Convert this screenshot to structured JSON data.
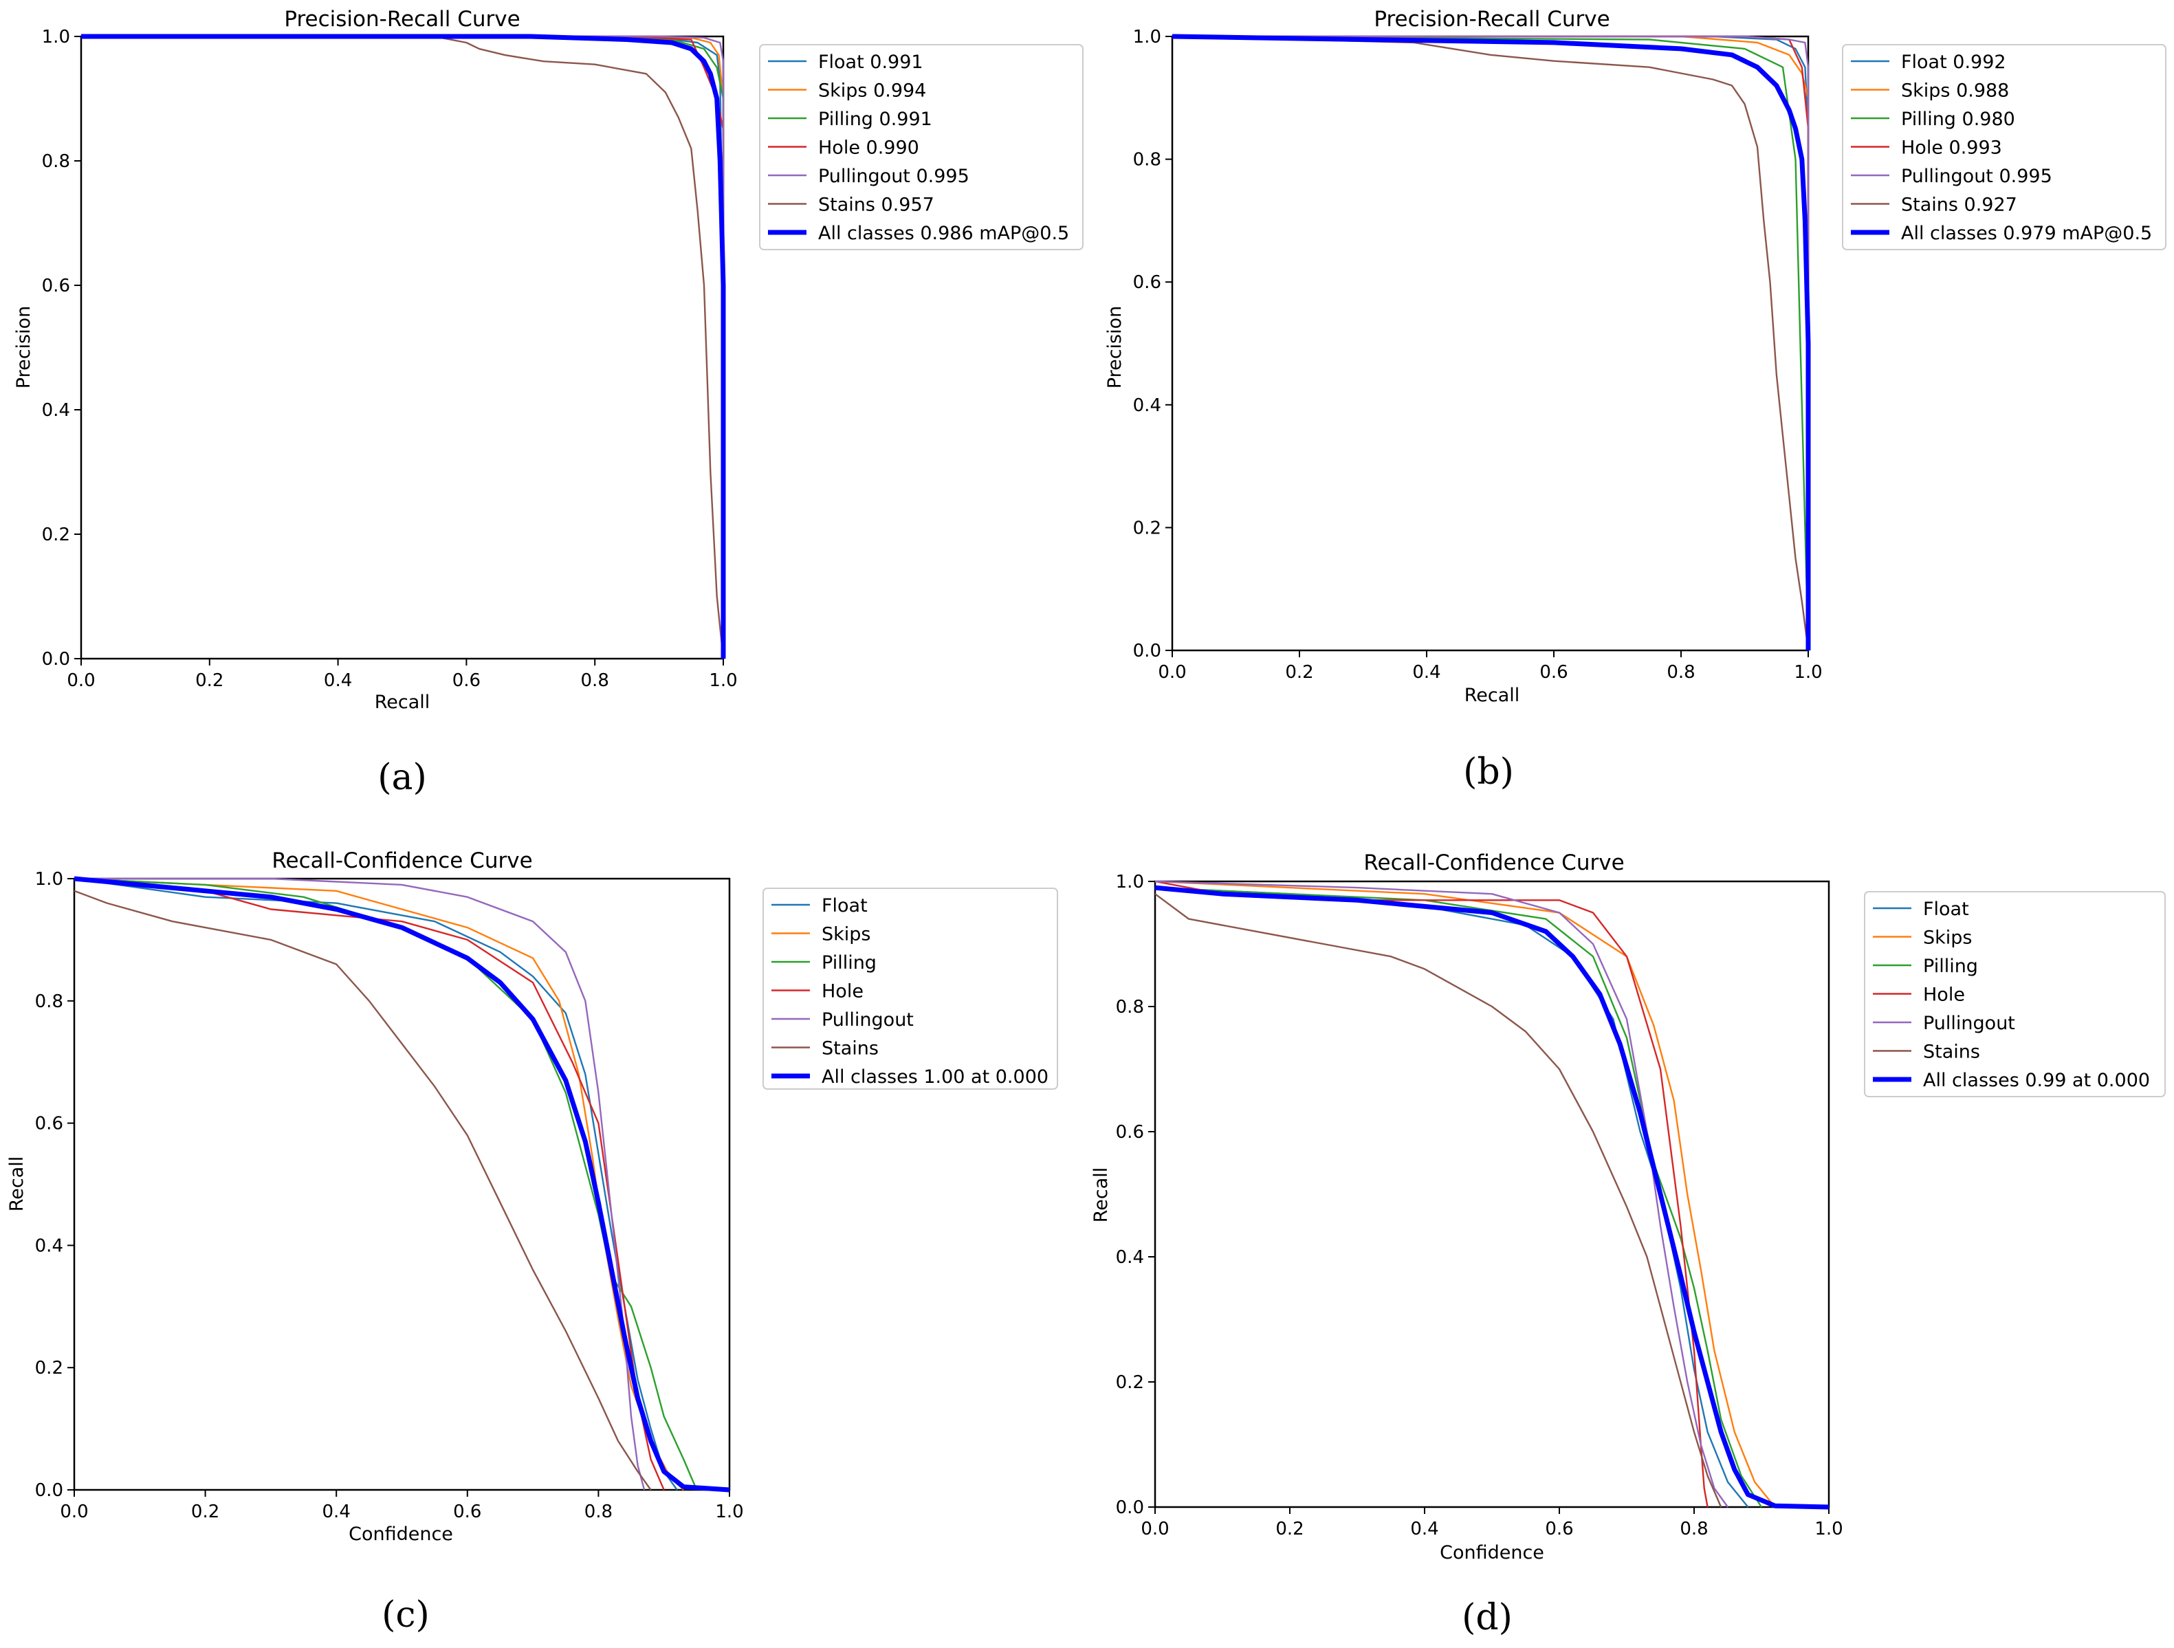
{
  "figure": {
    "captions": [
      "(a)",
      "(b)",
      "(c)",
      "(d)"
    ]
  },
  "chart_data": [
    {
      "type": "line",
      "title": "Precision-Recall Curve",
      "xlabel": "Recall",
      "ylabel": "Precision",
      "xlim": [
        0,
        1
      ],
      "ylim": [
        0,
        1
      ],
      "xticks": [
        "0.0",
        "0.2",
        "0.4",
        "0.6",
        "0.8",
        "1.0"
      ],
      "yticks": [
        "0.0",
        "0.2",
        "0.4",
        "0.6",
        "0.8",
        "1.0"
      ],
      "legend_position": "outside-right",
      "series": [
        {
          "name": "Float 0.991",
          "color": "#1f77b4",
          "x": [
            0,
            0.8,
            0.9,
            0.96,
            0.99,
            0.995,
            1.0,
            1.0
          ],
          "y": [
            1,
            1,
            0.998,
            0.99,
            0.97,
            0.93,
            0.6,
            0
          ]
        },
        {
          "name": "Skips 0.994",
          "color": "#ff7f0e",
          "x": [
            0,
            0.85,
            0.95,
            0.98,
            0.993,
            1.0,
            1.0
          ],
          "y": [
            1,
            1,
            0.998,
            0.99,
            0.97,
            0.9,
            0
          ]
        },
        {
          "name": "Pilling 0.991",
          "color": "#2ca02c",
          "x": [
            0,
            0.8,
            0.92,
            0.97,
            0.99,
            1.0,
            1.0
          ],
          "y": [
            1,
            1,
            0.995,
            0.98,
            0.95,
            0.9,
            0
          ]
        },
        {
          "name": "Hole 0.990",
          "color": "#d62728",
          "x": [
            0,
            0.85,
            0.95,
            0.97,
            0.99,
            1.0,
            1.0
          ],
          "y": [
            1,
            1,
            0.995,
            0.95,
            0.9,
            0.85,
            0
          ]
        },
        {
          "name": "Pullingout 0.995",
          "color": "#9467bd",
          "x": [
            0,
            0.9,
            0.97,
            0.995,
            1.0,
            1.0
          ],
          "y": [
            1,
            1,
            0.998,
            0.99,
            0.96,
            0
          ]
        },
        {
          "name": "Stains 0.957",
          "color": "#8c564b",
          "x": [
            0,
            0.55,
            0.6,
            0.62,
            0.66,
            0.72,
            0.8,
            0.88,
            0.91,
            0.93,
            0.95,
            0.96,
            0.97,
            0.975,
            0.98,
            0.985,
            0.99,
            0.995,
            1.0
          ],
          "y": [
            1,
            1,
            0.99,
            0.98,
            0.97,
            0.96,
            0.955,
            0.94,
            0.91,
            0.87,
            0.82,
            0.72,
            0.6,
            0.45,
            0.3,
            0.2,
            0.1,
            0.05,
            0
          ]
        },
        {
          "name": "All classes 0.986 mAP@0.5",
          "color": "#0000ff",
          "x": [
            0,
            0.7,
            0.85,
            0.92,
            0.95,
            0.97,
            0.98,
            0.99,
            0.995,
            1.0,
            1.0,
            1.0
          ],
          "y": [
            1,
            1,
            0.995,
            0.99,
            0.98,
            0.96,
            0.94,
            0.9,
            0.8,
            0.6,
            0.3,
            0
          ]
        }
      ]
    },
    {
      "type": "line",
      "title": "Precision-Recall Curve",
      "xlabel": "Recall",
      "ylabel": "Precision",
      "xlim": [
        0,
        1
      ],
      "ylim": [
        0,
        1
      ],
      "xticks": [
        "0.0",
        "0.2",
        "0.4",
        "0.6",
        "0.8",
        "1.0"
      ],
      "yticks": [
        "0.0",
        "0.2",
        "0.4",
        "0.6",
        "0.8",
        "1.0"
      ],
      "legend_position": "outside-right",
      "series": [
        {
          "name": "Float 0.992",
          "color": "#1f77b4",
          "x": [
            0,
            0.85,
            0.95,
            0.98,
            0.995,
            1.0,
            1.0
          ],
          "y": [
            1,
            1,
            0.995,
            0.98,
            0.95,
            0.85,
            0
          ]
        },
        {
          "name": "Skips 0.988",
          "color": "#ff7f0e",
          "x": [
            0,
            0.8,
            0.92,
            0.97,
            0.99,
            1.0,
            1.0
          ],
          "y": [
            1,
            1,
            0.99,
            0.97,
            0.94,
            0.9,
            0
          ]
        },
        {
          "name": "Pilling 0.980",
          "color": "#2ca02c",
          "x": [
            0,
            0.75,
            0.9,
            0.96,
            0.98,
            0.99,
            1.0
          ],
          "y": [
            1,
            0.995,
            0.98,
            0.95,
            0.8,
            0.4,
            0
          ]
        },
        {
          "name": "Hole 0.993",
          "color": "#d62728",
          "x": [
            0,
            0.9,
            0.97,
            0.99,
            0.995,
            1.0,
            1.0
          ],
          "y": [
            1,
            1,
            0.995,
            0.95,
            0.9,
            0.85,
            0
          ]
        },
        {
          "name": "Pullingout 0.995",
          "color": "#9467bd",
          "x": [
            0,
            0.9,
            0.97,
            0.995,
            1.0,
            1.0
          ],
          "y": [
            1,
            1,
            0.995,
            0.99,
            0.95,
            0
          ]
        },
        {
          "name": "Stains 0.927",
          "color": "#8c564b",
          "x": [
            0,
            0.38,
            0.5,
            0.6,
            0.75,
            0.85,
            0.88,
            0.9,
            0.92,
            0.93,
            0.94,
            0.95,
            0.96,
            0.97,
            0.98,
            0.99,
            1.0
          ],
          "y": [
            1,
            0.99,
            0.97,
            0.96,
            0.95,
            0.93,
            0.92,
            0.89,
            0.82,
            0.7,
            0.6,
            0.45,
            0.35,
            0.25,
            0.15,
            0.08,
            0
          ]
        },
        {
          "name": "All classes 0.979 mAP@0.5",
          "color": "#0000ff",
          "x": [
            0,
            0.6,
            0.8,
            0.88,
            0.92,
            0.95,
            0.97,
            0.98,
            0.99,
            0.995,
            1.0,
            1.0
          ],
          "y": [
            1,
            0.99,
            0.98,
            0.97,
            0.95,
            0.92,
            0.88,
            0.85,
            0.8,
            0.7,
            0.5,
            0
          ]
        }
      ]
    },
    {
      "type": "line",
      "title": "Recall-Confidence Curve",
      "xlabel": "Confidence",
      "ylabel": "Recall",
      "xlim": [
        0,
        1
      ],
      "ylim": [
        0,
        1
      ],
      "xticks": [
        "0.0",
        "0.2",
        "0.4",
        "0.6",
        "0.8",
        "1.0"
      ],
      "yticks": [
        "0.0",
        "0.2",
        "0.4",
        "0.6",
        "0.8",
        "1.0"
      ],
      "legend_position": "outside-right",
      "series": [
        {
          "name": "Float",
          "color": "#1f77b4",
          "x": [
            0,
            0.2,
            0.4,
            0.55,
            0.65,
            0.7,
            0.75,
            0.78,
            0.8,
            0.82,
            0.84,
            0.86,
            0.88,
            0.9,
            0.92
          ],
          "y": [
            1,
            0.97,
            0.96,
            0.93,
            0.88,
            0.84,
            0.78,
            0.68,
            0.55,
            0.42,
            0.3,
            0.18,
            0.1,
            0.03,
            0
          ]
        },
        {
          "name": "Skips",
          "color": "#ff7f0e",
          "x": [
            0,
            0.2,
            0.4,
            0.5,
            0.6,
            0.7,
            0.74,
            0.77,
            0.79,
            0.81,
            0.83,
            0.85,
            0.88,
            0.91,
            0.93
          ],
          "y": [
            1,
            0.99,
            0.98,
            0.95,
            0.92,
            0.87,
            0.8,
            0.68,
            0.55,
            0.4,
            0.28,
            0.17,
            0.08,
            0.02,
            0
          ]
        },
        {
          "name": "Pilling",
          "color": "#2ca02c",
          "x": [
            0,
            0.2,
            0.35,
            0.5,
            0.6,
            0.7,
            0.75,
            0.8,
            0.82,
            0.85,
            0.88,
            0.9,
            0.93,
            0.95
          ],
          "y": [
            1,
            0.99,
            0.97,
            0.92,
            0.87,
            0.77,
            0.65,
            0.45,
            0.35,
            0.3,
            0.2,
            0.12,
            0.05,
            0
          ]
        },
        {
          "name": "Hole",
          "color": "#d62728",
          "x": [
            0,
            0.2,
            0.3,
            0.5,
            0.6,
            0.7,
            0.76,
            0.8,
            0.82,
            0.84,
            0.86,
            0.88,
            0.9
          ],
          "y": [
            1,
            0.98,
            0.95,
            0.93,
            0.9,
            0.83,
            0.7,
            0.6,
            0.45,
            0.3,
            0.15,
            0.05,
            0
          ]
        },
        {
          "name": "Pullingout",
          "color": "#9467bd",
          "x": [
            0,
            0.3,
            0.5,
            0.6,
            0.7,
            0.75,
            0.78,
            0.8,
            0.82,
            0.84,
            0.85,
            0.86,
            0.87
          ],
          "y": [
            1,
            1,
            0.99,
            0.97,
            0.93,
            0.88,
            0.8,
            0.65,
            0.45,
            0.25,
            0.12,
            0.04,
            0
          ]
        },
        {
          "name": "Stains",
          "color": "#8c564b",
          "x": [
            0,
            0.05,
            0.15,
            0.3,
            0.4,
            0.45,
            0.5,
            0.55,
            0.6,
            0.65,
            0.7,
            0.75,
            0.8,
            0.83,
            0.86,
            0.88
          ],
          "y": [
            0.98,
            0.96,
            0.93,
            0.9,
            0.86,
            0.8,
            0.73,
            0.66,
            0.58,
            0.47,
            0.36,
            0.26,
            0.15,
            0.08,
            0.03,
            0
          ]
        },
        {
          "name": "All classes 1.00 at 0.000",
          "color": "#0000ff",
          "x": [
            0,
            0.1,
            0.2,
            0.3,
            0.4,
            0.5,
            0.6,
            0.65,
            0.7,
            0.75,
            0.78,
            0.8,
            0.82,
            0.84,
            0.86,
            0.88,
            0.9,
            0.93,
            1.0
          ],
          "y": [
            1,
            0.99,
            0.98,
            0.97,
            0.95,
            0.92,
            0.87,
            0.83,
            0.77,
            0.67,
            0.57,
            0.47,
            0.36,
            0.25,
            0.15,
            0.08,
            0.03,
            0.005,
            0
          ]
        }
      ]
    },
    {
      "type": "line",
      "title": "Recall-Confidence Curve",
      "xlabel": "Confidence",
      "ylabel": "Recall",
      "xlim": [
        0,
        1
      ],
      "ylim": [
        0,
        1
      ],
      "xticks": [
        "0.0",
        "0.2",
        "0.4",
        "0.6",
        "0.8",
        "1.0"
      ],
      "yticks": [
        "0.0",
        "0.2",
        "0.4",
        "0.6",
        "0.8",
        "1.0"
      ],
      "legend_position": "outside-right",
      "series": [
        {
          "name": "Float",
          "color": "#1f77b4",
          "x": [
            0,
            0.2,
            0.4,
            0.55,
            0.62,
            0.68,
            0.72,
            0.75,
            0.78,
            0.8,
            0.82,
            0.85,
            0.88
          ],
          "y": [
            0.99,
            0.98,
            0.96,
            0.93,
            0.88,
            0.78,
            0.6,
            0.5,
            0.35,
            0.22,
            0.12,
            0.04,
            0
          ]
        },
        {
          "name": "Skips",
          "color": "#ff7f0e",
          "x": [
            0,
            0.2,
            0.4,
            0.6,
            0.7,
            0.74,
            0.77,
            0.79,
            0.81,
            0.83,
            0.86,
            0.89,
            0.92
          ],
          "y": [
            1,
            0.99,
            0.98,
            0.95,
            0.88,
            0.77,
            0.65,
            0.5,
            0.38,
            0.25,
            0.12,
            0.04,
            0
          ]
        },
        {
          "name": "Pilling",
          "color": "#2ca02c",
          "x": [
            0,
            0.2,
            0.4,
            0.58,
            0.65,
            0.7,
            0.74,
            0.78,
            0.8,
            0.82,
            0.84,
            0.87,
            0.9
          ],
          "y": [
            0.99,
            0.98,
            0.97,
            0.94,
            0.88,
            0.75,
            0.55,
            0.43,
            0.35,
            0.25,
            0.14,
            0.05,
            0
          ]
        },
        {
          "name": "Hole",
          "color": "#d62728",
          "x": [
            0,
            0.1,
            0.3,
            0.6,
            0.65,
            0.7,
            0.75,
            0.78,
            0.8,
            0.81,
            0.815,
            0.82
          ],
          "y": [
            1,
            0.98,
            0.97,
            0.97,
            0.95,
            0.88,
            0.7,
            0.45,
            0.25,
            0.1,
            0.03,
            0
          ]
        },
        {
          "name": "Pullingout",
          "color": "#9467bd",
          "x": [
            0,
            0.3,
            0.5,
            0.6,
            0.65,
            0.7,
            0.73,
            0.75,
            0.77,
            0.79,
            0.81,
            0.83,
            0.85
          ],
          "y": [
            1,
            0.99,
            0.98,
            0.95,
            0.9,
            0.78,
            0.6,
            0.45,
            0.32,
            0.2,
            0.1,
            0.03,
            0
          ]
        },
        {
          "name": "Stains",
          "color": "#8c564b",
          "x": [
            0,
            0.05,
            0.15,
            0.25,
            0.35,
            0.4,
            0.5,
            0.55,
            0.6,
            0.65,
            0.7,
            0.73,
            0.75,
            0.78,
            0.8,
            0.82,
            0.84
          ],
          "y": [
            0.98,
            0.94,
            0.92,
            0.9,
            0.88,
            0.86,
            0.8,
            0.76,
            0.7,
            0.6,
            0.48,
            0.4,
            0.32,
            0.2,
            0.12,
            0.05,
            0
          ]
        },
        {
          "name": "All classes 0.99 at 0.000",
          "color": "#0000ff",
          "x": [
            0,
            0.1,
            0.2,
            0.3,
            0.4,
            0.5,
            0.58,
            0.62,
            0.66,
            0.69,
            0.72,
            0.75,
            0.78,
            0.8,
            0.82,
            0.84,
            0.86,
            0.88,
            0.92,
            1.0
          ],
          "y": [
            0.99,
            0.98,
            0.975,
            0.97,
            0.96,
            0.95,
            0.92,
            0.88,
            0.82,
            0.74,
            0.63,
            0.5,
            0.37,
            0.28,
            0.2,
            0.12,
            0.06,
            0.02,
            0.002,
            0
          ]
        }
      ]
    }
  ]
}
